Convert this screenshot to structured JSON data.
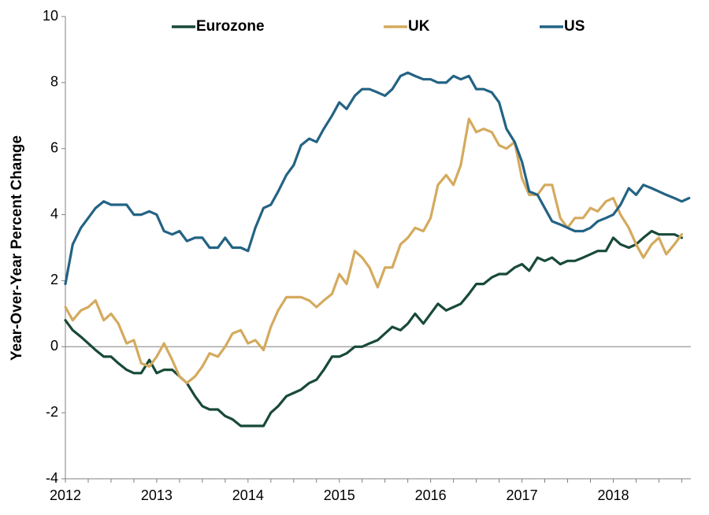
{
  "chart_data": {
    "type": "line",
    "title": "",
    "xlabel": "",
    "ylabel": "Year-Over-Year  Percent Change",
    "xlim": [
      2012.0,
      2018.85
    ],
    "ylim": [
      -4,
      10
    ],
    "yticks": [
      -4,
      -2,
      0,
      2,
      4,
      6,
      8,
      10
    ],
    "xticks": [
      2012,
      2013,
      2014,
      2015,
      2016,
      2017,
      2018
    ],
    "grid": false,
    "legend": "top",
    "series": [
      {
        "name": "Eurozone",
        "color": "#184a38",
        "x": [
          2012.0,
          2012.08,
          2012.17,
          2012.25,
          2012.33,
          2012.42,
          2012.5,
          2012.58,
          2012.67,
          2012.75,
          2012.83,
          2012.92,
          2013.0,
          2013.08,
          2013.17,
          2013.25,
          2013.33,
          2013.42,
          2013.5,
          2013.58,
          2013.67,
          2013.75,
          2013.83,
          2013.92,
          2014.0,
          2014.08,
          2014.17,
          2014.25,
          2014.33,
          2014.42,
          2014.5,
          2014.58,
          2014.67,
          2014.75,
          2014.83,
          2014.92,
          2015.0,
          2015.08,
          2015.17,
          2015.25,
          2015.33,
          2015.42,
          2015.5,
          2015.58,
          2015.67,
          2015.75,
          2015.83,
          2015.92,
          2016.0,
          2016.08,
          2016.17,
          2016.25,
          2016.33,
          2016.42,
          2016.5,
          2016.58,
          2016.67,
          2016.75,
          2016.83,
          2016.92,
          2017.0,
          2017.08,
          2017.17,
          2017.25,
          2017.33,
          2017.42,
          2017.5,
          2017.58,
          2017.67,
          2017.75,
          2017.83,
          2017.92,
          2018.0,
          2018.08,
          2018.17,
          2018.25,
          2018.33,
          2018.42,
          2018.5,
          2018.58,
          2018.67,
          2018.75
        ],
        "values": [
          0.8,
          0.5,
          0.3,
          0.1,
          -0.1,
          -0.3,
          -0.3,
          -0.5,
          -0.7,
          -0.8,
          -0.8,
          -0.4,
          -0.8,
          -0.7,
          -0.7,
          -0.9,
          -1.1,
          -1.5,
          -1.8,
          -1.9,
          -1.9,
          -2.1,
          -2.2,
          -2.4,
          -2.4,
          -2.4,
          -2.4,
          -2.0,
          -1.8,
          -1.5,
          -1.4,
          -1.3,
          -1.1,
          -1.0,
          -0.7,
          -0.3,
          -0.3,
          -0.2,
          0.0,
          0.0,
          0.1,
          0.2,
          0.4,
          0.6,
          0.5,
          0.7,
          1.0,
          0.7,
          1.0,
          1.3,
          1.1,
          1.2,
          1.3,
          1.6,
          1.9,
          1.9,
          2.1,
          2.2,
          2.2,
          2.4,
          2.5,
          2.3,
          2.7,
          2.6,
          2.7,
          2.5,
          2.6,
          2.6,
          2.7,
          2.8,
          2.9,
          2.9,
          3.3,
          3.1,
          3.0,
          3.1,
          3.3,
          3.5,
          3.4,
          3.4,
          3.4,
          3.3
        ]
      },
      {
        "name": "UK",
        "color": "#d4aa5e",
        "x": [
          2012.0,
          2012.08,
          2012.17,
          2012.25,
          2012.33,
          2012.42,
          2012.5,
          2012.58,
          2012.67,
          2012.75,
          2012.83,
          2012.92,
          2013.0,
          2013.08,
          2013.17,
          2013.25,
          2013.33,
          2013.42,
          2013.5,
          2013.58,
          2013.67,
          2013.75,
          2013.83,
          2013.92,
          2014.0,
          2014.08,
          2014.17,
          2014.25,
          2014.33,
          2014.42,
          2014.5,
          2014.58,
          2014.67,
          2014.75,
          2014.83,
          2014.92,
          2015.0,
          2015.08,
          2015.17,
          2015.25,
          2015.33,
          2015.42,
          2015.5,
          2015.58,
          2015.67,
          2015.75,
          2015.83,
          2015.92,
          2016.0,
          2016.08,
          2016.17,
          2016.25,
          2016.33,
          2016.42,
          2016.5,
          2016.58,
          2016.67,
          2016.75,
          2016.83,
          2016.92,
          2017.0,
          2017.08,
          2017.17,
          2017.25,
          2017.33,
          2017.42,
          2017.5,
          2017.58,
          2017.67,
          2017.75,
          2017.83,
          2017.92,
          2018.0,
          2018.08,
          2018.17,
          2018.25,
          2018.33,
          2018.42,
          2018.5,
          2018.58,
          2018.67,
          2018.75
        ],
        "values": [
          1.2,
          0.8,
          1.1,
          1.2,
          1.4,
          0.8,
          1.0,
          0.7,
          0.1,
          0.2,
          -0.5,
          -0.6,
          -0.3,
          0.1,
          -0.4,
          -0.9,
          -1.1,
          -0.9,
          -0.6,
          -0.2,
          -0.3,
          0.0,
          0.4,
          0.5,
          0.1,
          0.2,
          -0.1,
          0.6,
          1.1,
          1.5,
          1.5,
          1.5,
          1.4,
          1.2,
          1.4,
          1.6,
          2.2,
          1.9,
          2.9,
          2.7,
          2.4,
          1.8,
          2.4,
          2.4,
          3.1,
          3.3,
          3.6,
          3.5,
          3.9,
          4.9,
          5.2,
          4.9,
          5.5,
          6.9,
          6.5,
          6.6,
          6.5,
          6.1,
          6.0,
          6.2,
          5.1,
          4.6,
          4.6,
          4.9,
          4.9,
          3.9,
          3.6,
          3.9,
          3.9,
          4.2,
          4.1,
          4.4,
          4.5,
          4.0,
          3.6,
          3.1,
          2.7,
          3.1,
          3.3,
          2.8,
          3.1,
          3.4
        ]
      },
      {
        "name": "US",
        "color": "#236384",
        "x": [
          2012.0,
          2012.08,
          2012.17,
          2012.25,
          2012.33,
          2012.42,
          2012.5,
          2012.58,
          2012.67,
          2012.75,
          2012.83,
          2012.92,
          2013.0,
          2013.08,
          2013.17,
          2013.25,
          2013.33,
          2013.42,
          2013.5,
          2013.58,
          2013.67,
          2013.75,
          2013.83,
          2013.92,
          2014.0,
          2014.08,
          2014.17,
          2014.25,
          2014.33,
          2014.42,
          2014.5,
          2014.58,
          2014.67,
          2014.75,
          2014.83,
          2014.92,
          2015.0,
          2015.08,
          2015.17,
          2015.25,
          2015.33,
          2015.42,
          2015.5,
          2015.58,
          2015.67,
          2015.75,
          2015.83,
          2015.92,
          2016.0,
          2016.08,
          2016.17,
          2016.25,
          2016.33,
          2016.42,
          2016.5,
          2016.58,
          2016.67,
          2016.75,
          2016.83,
          2016.92,
          2017.0,
          2017.08,
          2017.17,
          2017.25,
          2017.33,
          2017.42,
          2017.5,
          2017.58,
          2017.67,
          2017.75,
          2017.83,
          2017.92,
          2018.0,
          2018.08,
          2018.17,
          2018.25,
          2018.33,
          2018.42,
          2018.5,
          2018.58,
          2018.67,
          2018.75,
          2018.83
        ],
        "values": [
          1.9,
          3.1,
          3.6,
          3.9,
          4.2,
          4.4,
          4.3,
          4.3,
          4.3,
          4.0,
          4.0,
          4.1,
          4.0,
          3.5,
          3.4,
          3.5,
          3.2,
          3.3,
          3.3,
          3.0,
          3.0,
          3.3,
          3.0,
          3.0,
          2.9,
          3.6,
          4.2,
          4.3,
          4.7,
          5.2,
          5.5,
          6.1,
          6.3,
          6.2,
          6.6,
          7.0,
          7.4,
          7.2,
          7.6,
          7.8,
          7.8,
          7.7,
          7.6,
          7.8,
          8.2,
          8.3,
          8.2,
          8.1,
          8.1,
          8.0,
          8.0,
          8.2,
          8.1,
          8.2,
          7.8,
          7.8,
          7.7,
          7.4,
          6.6,
          6.2,
          5.6,
          4.7,
          4.6,
          4.2,
          3.8,
          3.7,
          3.6,
          3.5,
          3.5,
          3.6,
          3.8,
          3.9,
          4.0,
          4.3,
          4.8,
          4.6,
          4.9,
          4.8,
          4.7,
          4.6,
          4.5,
          4.4,
          4.5
        ]
      }
    ]
  }
}
